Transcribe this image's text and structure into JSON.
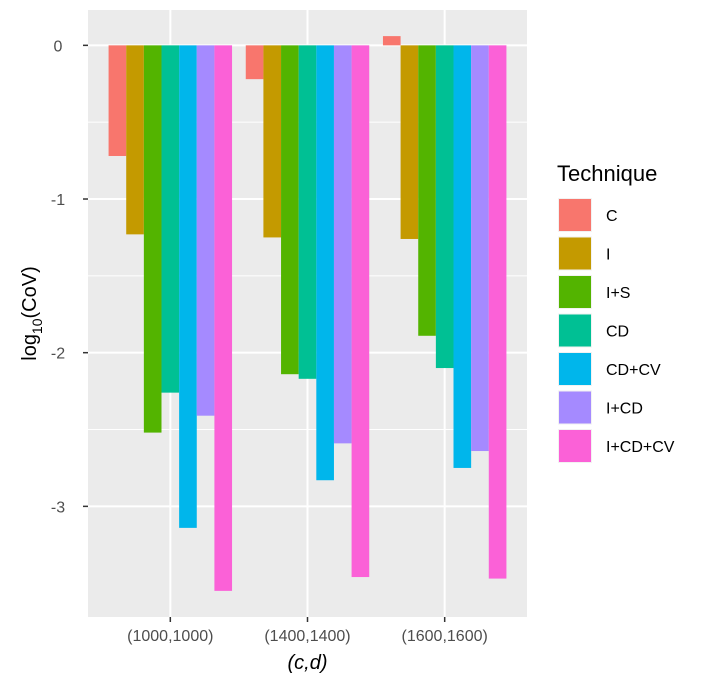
{
  "chart_data": {
    "type": "bar",
    "categories": [
      "(1000,1000)",
      "(1400,1400)",
      "(1600,1600)"
    ],
    "series": [
      {
        "name": "C",
        "color": "#F8766D",
        "values": [
          -0.72,
          -0.22,
          0.06
        ]
      },
      {
        "name": "I",
        "color": "#C49A00",
        "values": [
          -1.23,
          -1.25,
          -1.26
        ]
      },
      {
        "name": "I+S",
        "color": "#53B400",
        "values": [
          -2.52,
          -2.14,
          -1.89
        ]
      },
      {
        "name": "CD",
        "color": "#00C094",
        "values": [
          -2.26,
          -2.17,
          -2.1
        ]
      },
      {
        "name": "CD+CV",
        "color": "#00B6EB",
        "values": [
          -3.14,
          -2.83,
          -2.75
        ]
      },
      {
        "name": "I+CD",
        "color": "#A58AFF",
        "values": [
          -2.41,
          -2.59,
          -2.64
        ]
      },
      {
        "name": "I+CD+CV",
        "color": "#FB61D7",
        "values": [
          -3.55,
          -3.46,
          -3.47
        ]
      }
    ],
    "xlabel": "(c,d)",
    "ylabel_main": "log",
    "ylabel_sub": "10",
    "ylabel_rest": "(CoV)",
    "yticks": [
      0,
      -1,
      -2,
      -3
    ],
    "ytick_labels": [
      "0",
      "-1",
      "-2",
      "-3"
    ],
    "ylim": [
      -3.72,
      0.23
    ],
    "grid": true,
    "legend_title": "Technique",
    "legend_position": "right",
    "panel_color": "#EBEBEB",
    "grid_color": "#FFFFFF"
  }
}
